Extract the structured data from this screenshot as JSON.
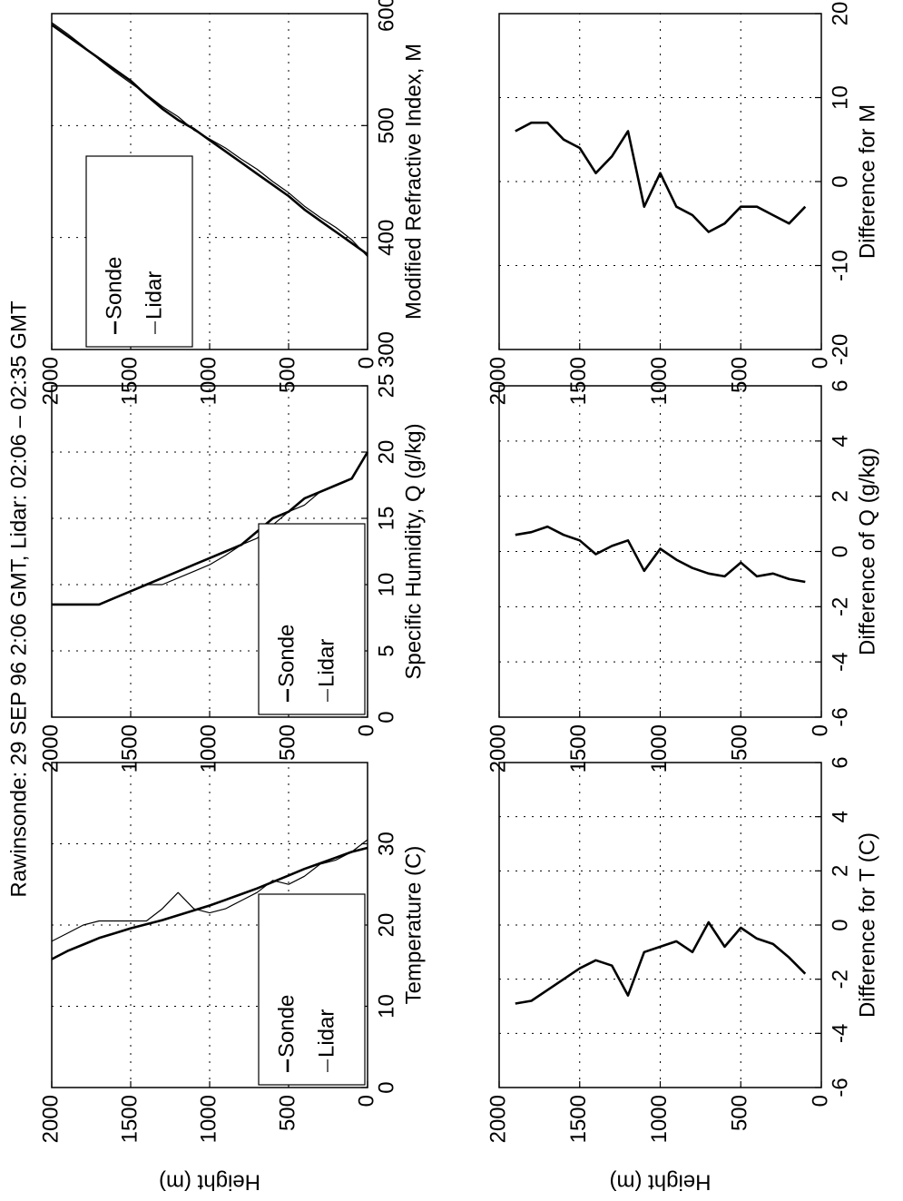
{
  "title": "Rawinsonde: 29 SEP 96  2:06 GMT,  Lidar:  02:06 – 02:35 GMT",
  "chart_data": [
    {
      "type": "line",
      "xlabel": "Temperature (C)",
      "ylabel": "Height (m)",
      "xlim": [
        0,
        40
      ],
      "xticks": [
        0,
        10,
        20,
        30
      ],
      "ylim": [
        0,
        2000
      ],
      "yticks": [
        0,
        500,
        1000,
        1500,
        2000
      ],
      "grid": true,
      "legend": "lower left",
      "y": [
        0,
        100,
        200,
        300,
        400,
        500,
        600,
        700,
        800,
        900,
        1000,
        1100,
        1200,
        1300,
        1400,
        1500,
        1600,
        1700,
        1800,
        1900,
        2000
      ],
      "series": [
        {
          "name": "Sonde",
          "color": "#000000",
          "x": [
            29.5,
            29,
            28.3,
            27.6,
            26.9,
            26.1,
            25.3,
            24.5,
            23.8,
            23.1,
            22.4,
            21.8,
            21.2,
            20.6,
            20.1,
            19.6,
            19,
            18.4,
            17.6,
            16.8,
            15.8
          ]
        },
        {
          "name": "Lidar",
          "color": "#000000",
          "x": [
            30.5,
            29,
            28,
            27.5,
            26,
            25,
            25.5,
            24,
            23,
            22,
            21.5,
            22,
            24,
            22,
            20.5,
            20.5,
            20.5,
            20.5,
            20,
            19,
            18
          ]
        }
      ]
    },
    {
      "type": "line",
      "xlabel": "Specific Humidity, Q (g/kg)",
      "xlim": [
        0,
        25
      ],
      "xticks": [
        0,
        5,
        10,
        15,
        20,
        25
      ],
      "ylim": [
        0,
        2000
      ],
      "yticks": [
        0,
        500,
        1000,
        1500,
        2000
      ],
      "grid": true,
      "legend": "lower left",
      "y": [
        0,
        100,
        200,
        300,
        400,
        500,
        600,
        700,
        800,
        900,
        1000,
        1100,
        1200,
        1300,
        1400,
        1500,
        1600,
        1700,
        1800,
        1900,
        2000
      ],
      "series": [
        {
          "name": "Sonde",
          "color": "#000000",
          "x": [
            20,
            18,
            17.5,
            17,
            16.5,
            15.5,
            15,
            14,
            13,
            12.5,
            12,
            11.5,
            11,
            10.5,
            10,
            9.5,
            9,
            8.5,
            8.5,
            8.5,
            8.5
          ]
        },
        {
          "name": "Lidar",
          "color": "#000000",
          "x": [
            null,
            18,
            17.5,
            17,
            16,
            15.5,
            14.5,
            13.5,
            13,
            12.2,
            11.5,
            11,
            10.5,
            10,
            10,
            9.5,
            9,
            8.5,
            8.5,
            8.5,
            8.5
          ]
        }
      ]
    },
    {
      "type": "line",
      "xlabel": "Modified Refractive Index, M",
      "xlim": [
        300,
        600
      ],
      "xticks": [
        300,
        400,
        500,
        600
      ],
      "ylim": [
        0,
        2000
      ],
      "yticks": [
        0,
        500,
        1000,
        1500,
        2000
      ],
      "grid": true,
      "legend": "upper left",
      "y": [
        0,
        100,
        200,
        300,
        400,
        500,
        600,
        700,
        800,
        900,
        1000,
        1100,
        1200,
        1300,
        1400,
        1500,
        1600,
        1700,
        1800,
        1900,
        2000
      ],
      "series": [
        {
          "name": "Sonde",
          "color": "#000000",
          "x": [
            385,
            395,
            405,
            415,
            425,
            437,
            447,
            457,
            467,
            477,
            487,
            497,
            505,
            515,
            527,
            540,
            550,
            560,
            570,
            580,
            590
          ]
        },
        {
          "name": "Lidar",
          "color": "#000000",
          "x": [
            383,
            398,
            409,
            418,
            428,
            440,
            450,
            461,
            470,
            480,
            488,
            496,
            508,
            517,
            528,
            538,
            548,
            559,
            571,
            582,
            592
          ]
        }
      ]
    },
    {
      "type": "line",
      "xlabel": "Difference for T (C)",
      "ylabel": "Height (m)",
      "xlim": [
        -6,
        6
      ],
      "xticks": [
        -6,
        -4,
        -2,
        0,
        2,
        4,
        6
      ],
      "ylim": [
        0,
        2000
      ],
      "yticks": [
        0,
        500,
        1000,
        1500,
        2000
      ],
      "grid": true,
      "y": [
        100,
        200,
        300,
        400,
        500,
        600,
        700,
        800,
        900,
        1000,
        1100,
        1200,
        1300,
        1400,
        1500,
        1600,
        1700,
        1800,
        1900
      ],
      "series": [
        {
          "color": "#000000",
          "x": [
            -1.8,
            -1.2,
            -0.7,
            -0.5,
            -0.1,
            -0.8,
            0.1,
            -1,
            -0.6,
            -0.8,
            -1,
            -2.6,
            -1.5,
            -1.3,
            -1.6,
            -2,
            -2.4,
            -2.8,
            -2.9
          ]
        }
      ]
    },
    {
      "type": "line",
      "xlabel": "Difference of Q (g/kg)",
      "xlim": [
        -6,
        6
      ],
      "xticks": [
        -6,
        -4,
        -2,
        0,
        2,
        4,
        6
      ],
      "ylim": [
        0,
        2000
      ],
      "yticks": [
        0,
        500,
        1000,
        1500,
        2000
      ],
      "grid": true,
      "y": [
        100,
        200,
        300,
        400,
        500,
        600,
        700,
        800,
        900,
        1000,
        1100,
        1200,
        1300,
        1400,
        1500,
        1600,
        1700,
        1800,
        1900
      ],
      "series": [
        {
          "color": "#000000",
          "x": [
            -1.1,
            -1,
            -0.8,
            -0.9,
            -0.4,
            -0.9,
            -0.8,
            -0.6,
            -0.3,
            0.1,
            -0.7,
            0.4,
            0.2,
            -0.1,
            0.4,
            0.6,
            0.9,
            0.7,
            0.6
          ]
        }
      ]
    },
    {
      "type": "line",
      "xlabel": "Difference for M",
      "xlim": [
        -20,
        20
      ],
      "xticks": [
        -20,
        -10,
        0,
        10,
        20
      ],
      "ylim": [
        0,
        2000
      ],
      "yticks": [
        0,
        500,
        1000,
        1500,
        2000
      ],
      "grid": true,
      "y": [
        100,
        200,
        300,
        400,
        500,
        600,
        700,
        800,
        900,
        1000,
        1100,
        1200,
        1300,
        1400,
        1500,
        1600,
        1700,
        1800,
        1900
      ],
      "series": [
        {
          "color": "#000000",
          "x": [
            -3,
            -5,
            -4,
            -3,
            -3,
            -5,
            -6,
            -4,
            -3,
            1,
            -3,
            6,
            3,
            1,
            4,
            5,
            7,
            7,
            6
          ]
        }
      ]
    }
  ]
}
